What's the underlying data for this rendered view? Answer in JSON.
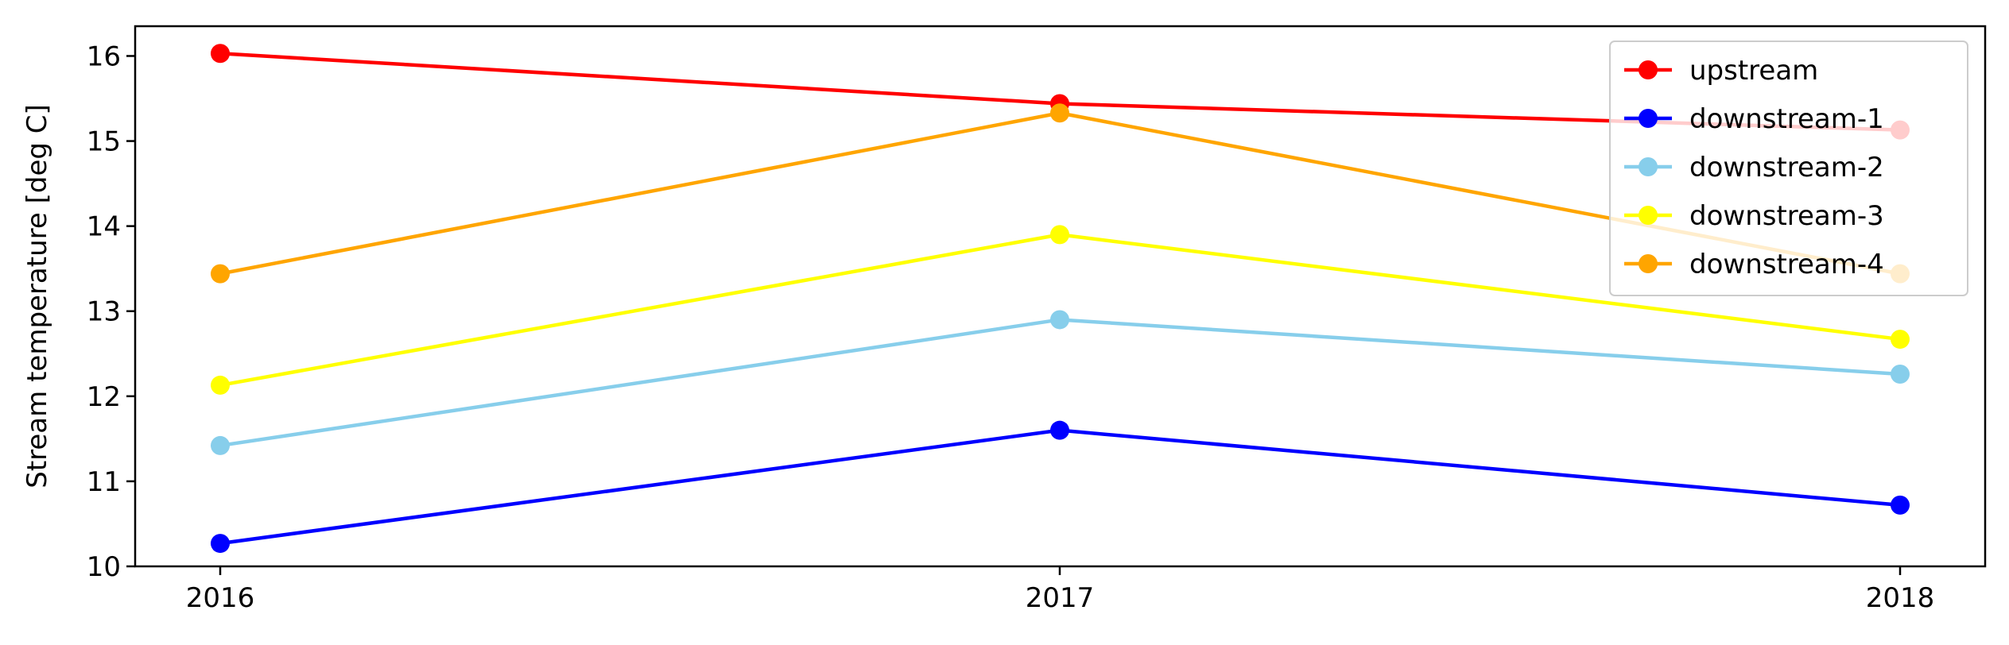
{
  "chart_data": {
    "type": "line",
    "title": "",
    "xlabel": "",
    "ylabel": "Stream temperature [deg C]",
    "x": [
      "2016",
      "2017",
      "2018"
    ],
    "ylim": [
      10,
      16.35
    ],
    "yticks": [
      10,
      11,
      12,
      13,
      14,
      15,
      16
    ],
    "grid": false,
    "legend_position": "top-right",
    "series": [
      {
        "name": "upstream",
        "color": "#ff0000",
        "values": [
          16.03,
          15.44,
          15.13
        ]
      },
      {
        "name": "downstream-1",
        "color": "#0000ff",
        "values": [
          10.27,
          11.6,
          10.72
        ]
      },
      {
        "name": "downstream-2",
        "color": "#87ceeb",
        "values": [
          11.42,
          12.9,
          12.26
        ]
      },
      {
        "name": "downstream-3",
        "color": "#ffff00",
        "values": [
          12.13,
          13.9,
          12.67
        ]
      },
      {
        "name": "downstream-4",
        "color": "#ffa500",
        "values": [
          13.44,
          15.33,
          13.44
        ]
      }
    ]
  }
}
